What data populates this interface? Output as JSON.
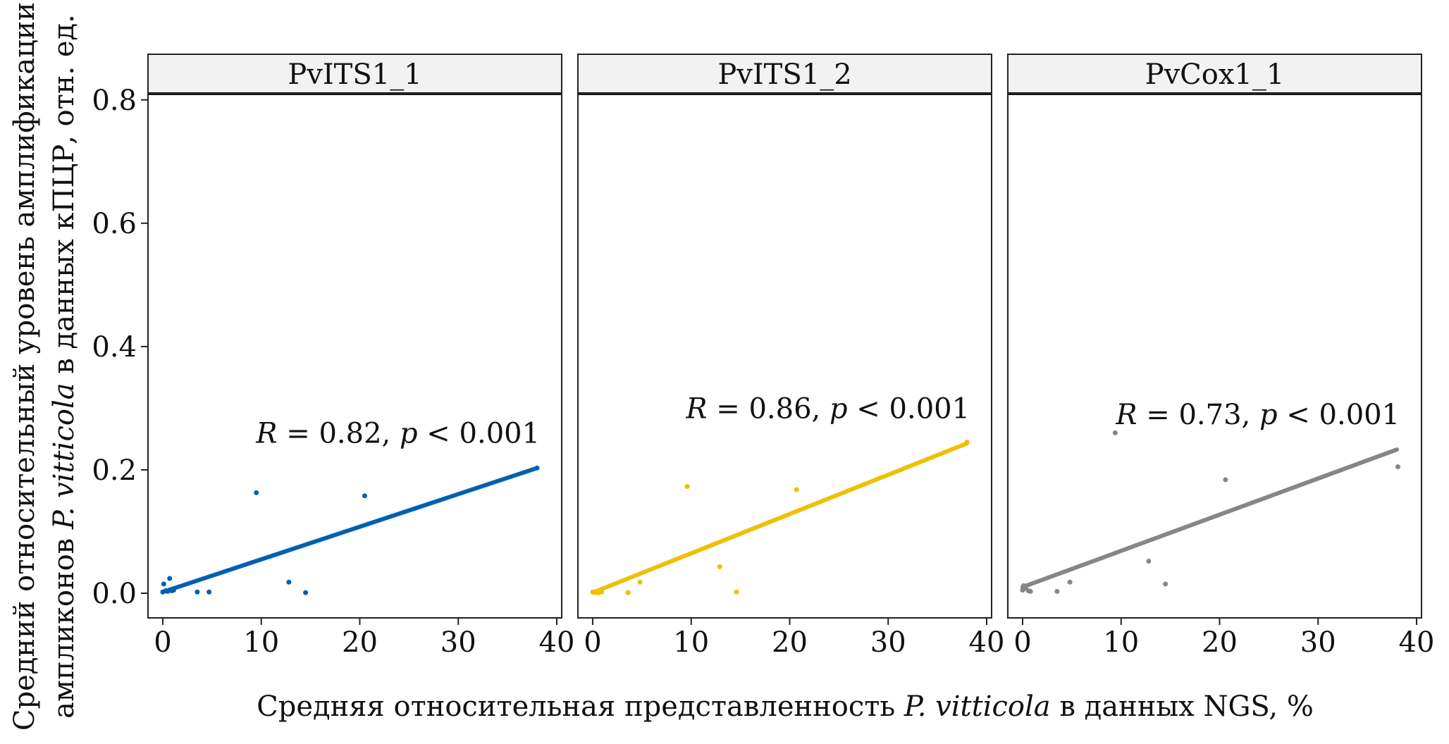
{
  "chart_data": {
    "type": "scatter",
    "layout": "faceted",
    "xlabel_parts": [
      "Средняя относительная представленность ",
      "P. vitticola",
      " в данных NGS, %"
    ],
    "ylabel_line1": "Средний относительный уровень амплификации",
    "ylabel_line2_parts": [
      "ампликонов ",
      "P. vitticola",
      "  в данных кПЦР, отн. ед."
    ],
    "xlim": [
      -1.5,
      40.5
    ],
    "ylim": [
      -0.04,
      0.81
    ],
    "x_ticks": [
      0,
      10,
      20,
      30,
      40
    ],
    "x_tick_labels": [
      "0",
      "10",
      "20",
      "30",
      "40"
    ],
    "y_ticks": [
      0.0,
      0.2,
      0.4,
      0.6,
      0.8
    ],
    "y_tick_labels": [
      "0.0",
      "0.2",
      "0.4",
      "0.6",
      "0.8"
    ],
    "grid": false,
    "panels": [
      {
        "label": "PvITS1_1",
        "color": "#0060B0",
        "r_label": "R",
        "r_value": " = 0.82, ",
        "p_label": "p",
        "p_value": " < 0.001",
        "fit_x": [
          0,
          38
        ],
        "fit_y": [
          0.002,
          0.203
        ],
        "points": [
          {
            "x": 0.0,
            "y": 0.002
          },
          {
            "x": 0.1,
            "y": 0.015
          },
          {
            "x": 0.3,
            "y": 0.004
          },
          {
            "x": 0.5,
            "y": 0.003
          },
          {
            "x": 0.7,
            "y": 0.024
          },
          {
            "x": 0.9,
            "y": 0.004
          },
          {
            "x": 1.1,
            "y": 0.005
          },
          {
            "x": 3.5,
            "y": 0.002
          },
          {
            "x": 4.7,
            "y": 0.002
          },
          {
            "x": 9.5,
            "y": 0.163
          },
          {
            "x": 12.8,
            "y": 0.018
          },
          {
            "x": 14.5,
            "y": 0.001
          },
          {
            "x": 20.5,
            "y": 0.158
          },
          {
            "x": 38.0,
            "y": 0.203
          }
        ]
      },
      {
        "label": "PvITS1_2",
        "color": "#EFC000",
        "r_label": "R",
        "r_value": " = 0.86, ",
        "p_label": "p",
        "p_value": " < 0.001",
        "fit_x": [
          0,
          38
        ],
        "fit_y": [
          0.001,
          0.243
        ],
        "points": [
          {
            "x": 0.0,
            "y": 0.002
          },
          {
            "x": 0.3,
            "y": 0.001
          },
          {
            "x": 0.6,
            "y": 0.001
          },
          {
            "x": 0.9,
            "y": 0.002
          },
          {
            "x": 3.6,
            "y": 0.001
          },
          {
            "x": 4.8,
            "y": 0.018
          },
          {
            "x": 9.6,
            "y": 0.173
          },
          {
            "x": 12.9,
            "y": 0.043
          },
          {
            "x": 14.6,
            "y": 0.002
          },
          {
            "x": 20.7,
            "y": 0.168
          },
          {
            "x": 38.0,
            "y": 0.245
          }
        ]
      },
      {
        "label": "PvCox1_1",
        "color": "#868686",
        "r_label": "R",
        "r_value": " = 0.73, ",
        "p_label": "p",
        "p_value": " < 0.001",
        "fit_x": [
          0,
          38
        ],
        "fit_y": [
          0.01,
          0.233
        ],
        "points": [
          {
            "x": 0.0,
            "y": 0.005
          },
          {
            "x": 0.1,
            "y": 0.012
          },
          {
            "x": 0.3,
            "y": 0.008
          },
          {
            "x": 0.6,
            "y": 0.004
          },
          {
            "x": 0.8,
            "y": 0.003
          },
          {
            "x": 3.5,
            "y": 0.003
          },
          {
            "x": 4.8,
            "y": 0.018
          },
          {
            "x": 9.4,
            "y": 0.26
          },
          {
            "x": 12.8,
            "y": 0.052
          },
          {
            "x": 14.5,
            "y": 0.015
          },
          {
            "x": 20.6,
            "y": 0.184
          },
          {
            "x": 38.1,
            "y": 0.205
          }
        ]
      }
    ]
  }
}
